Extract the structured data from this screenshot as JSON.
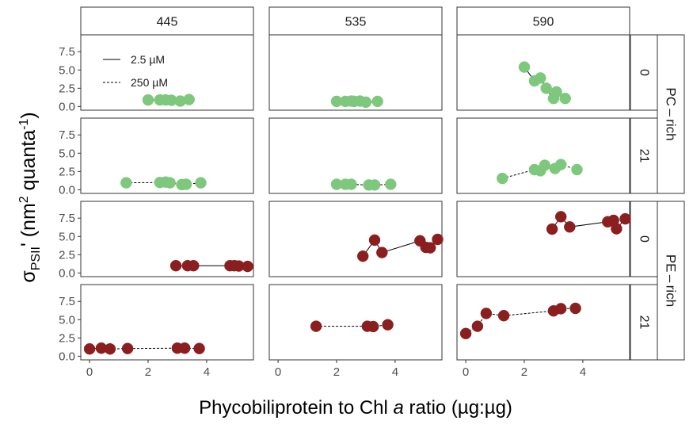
{
  "chart_data": {
    "type": "scatter",
    "xlabel_pre": "Phycobiliprotein to Chl ",
    "xlabel_italic": "a",
    "xlabel_post": " ratio (µg:µg)",
    "ylabel": "σPSII' (nm2 quanta-1)",
    "ylabel_parts": {
      "sigma": "σ",
      "sub": "PSII",
      "prime": "'",
      "open": " (nm",
      "sup2": "2",
      "mid": " quanta",
      "supm1": "-1",
      "close": ")"
    },
    "col_strips": [
      "445",
      "535",
      "590"
    ],
    "row_strips": [
      "0",
      "21",
      "0",
      "21"
    ],
    "group_strips": [
      "PC – rich",
      "PE – rich"
    ],
    "x_ticks": [
      0,
      2,
      4
    ],
    "y_ticks": [
      "0.0",
      "2.5",
      "5.0",
      "7.5"
    ],
    "xlim": [
      -0.3,
      5.6
    ],
    "ylim": [
      -0.5,
      9.8
    ],
    "legend": {
      "position": "top-left of first panel",
      "items": [
        {
          "label": "2.5 µM",
          "linetype": "solid"
        },
        {
          "label": "250 µM",
          "linetype": "dashed"
        }
      ]
    },
    "colors": {
      "pc_rich": "#7dc87d",
      "pe_rich": "#8b1f1f"
    },
    "panels": [
      {
        "row": 0,
        "col": 0,
        "group": "PC-rich",
        "linetype": "solid",
        "points": [
          [
            2.0,
            0.9
          ],
          [
            2.4,
            0.9
          ],
          [
            2.6,
            0.9
          ],
          [
            2.8,
            0.85
          ],
          [
            3.1,
            0.75
          ],
          [
            3.4,
            0.95
          ]
        ]
      },
      {
        "row": 0,
        "col": 1,
        "group": "PC-rich",
        "linetype": "solid",
        "points": [
          [
            2.0,
            0.7
          ],
          [
            2.3,
            0.7
          ],
          [
            2.5,
            0.75
          ],
          [
            2.6,
            0.7
          ],
          [
            2.8,
            0.75
          ],
          [
            3.0,
            0.6
          ],
          [
            3.4,
            0.7
          ]
        ]
      },
      {
        "row": 0,
        "col": 2,
        "group": "PC-rich",
        "linetype": "solid",
        "points": [
          [
            2.0,
            5.4
          ],
          [
            2.35,
            3.5
          ],
          [
            2.55,
            3.9
          ],
          [
            2.75,
            2.5
          ],
          [
            3.0,
            1.1
          ],
          [
            3.1,
            2.0
          ],
          [
            3.4,
            1.1
          ]
        ]
      },
      {
        "row": 1,
        "col": 0,
        "group": "PC-rich",
        "linetype": "dashed",
        "points": [
          [
            1.25,
            0.95
          ],
          [
            2.4,
            1.0
          ],
          [
            2.6,
            1.05
          ],
          [
            2.75,
            0.95
          ],
          [
            3.15,
            0.7
          ],
          [
            3.3,
            0.75
          ],
          [
            3.8,
            0.95
          ]
        ]
      },
      {
        "row": 1,
        "col": 1,
        "group": "PC-rich",
        "linetype": "dashed",
        "points": [
          [
            2.0,
            0.75
          ],
          [
            2.3,
            0.75
          ],
          [
            2.5,
            0.75
          ],
          [
            3.1,
            0.65
          ],
          [
            3.3,
            0.65
          ],
          [
            3.85,
            0.75
          ]
        ]
      },
      {
        "row": 1,
        "col": 2,
        "group": "PC-rich",
        "linetype": "dashed",
        "points": [
          [
            1.25,
            1.55
          ],
          [
            2.35,
            2.75
          ],
          [
            2.55,
            2.6
          ],
          [
            2.7,
            3.35
          ],
          [
            3.05,
            2.9
          ],
          [
            3.25,
            3.45
          ],
          [
            3.8,
            2.75
          ]
        ]
      },
      {
        "row": 2,
        "col": 0,
        "group": "PE-rich",
        "linetype": "solid",
        "points": [
          [
            2.95,
            1.0
          ],
          [
            3.35,
            1.0
          ],
          [
            3.55,
            1.0
          ],
          [
            4.8,
            1.0
          ],
          [
            4.95,
            1.0
          ],
          [
            5.1,
            0.95
          ],
          [
            5.4,
            0.9
          ]
        ]
      },
      {
        "row": 2,
        "col": 1,
        "group": "PE-rich",
        "linetype": "solid",
        "points": [
          [
            2.9,
            2.3
          ],
          [
            3.3,
            4.5
          ],
          [
            3.55,
            2.8
          ],
          [
            4.85,
            4.4
          ],
          [
            5.05,
            3.5
          ],
          [
            5.2,
            3.45
          ],
          [
            5.45,
            4.6
          ]
        ]
      },
      {
        "row": 2,
        "col": 2,
        "group": "PE-rich",
        "linetype": "solid",
        "points": [
          [
            2.95,
            6.0
          ],
          [
            3.25,
            7.7
          ],
          [
            3.55,
            6.3
          ],
          [
            4.85,
            7.0
          ],
          [
            5.05,
            7.2
          ],
          [
            5.15,
            6.05
          ],
          [
            5.45,
            7.4
          ]
        ]
      },
      {
        "row": 3,
        "col": 0,
        "group": "PE-rich",
        "linetype": "dashed",
        "points": [
          [
            0.0,
            1.0
          ],
          [
            0.4,
            1.1
          ],
          [
            0.7,
            1.0
          ],
          [
            1.3,
            1.05
          ],
          [
            3.0,
            1.1
          ],
          [
            3.25,
            1.1
          ],
          [
            3.75,
            1.05
          ]
        ]
      },
      {
        "row": 3,
        "col": 1,
        "group": "PE-rich",
        "linetype": "dashed",
        "points": [
          [
            1.3,
            4.1
          ],
          [
            3.05,
            4.1
          ],
          [
            3.25,
            4.05
          ],
          [
            3.75,
            4.3
          ]
        ]
      },
      {
        "row": 3,
        "col": 2,
        "group": "PE-rich",
        "linetype": "dashed",
        "points": [
          [
            0.0,
            3.1
          ],
          [
            0.4,
            4.1
          ],
          [
            0.7,
            5.85
          ],
          [
            1.3,
            5.55
          ],
          [
            3.0,
            6.2
          ],
          [
            3.25,
            6.5
          ],
          [
            3.75,
            6.55
          ]
        ]
      }
    ]
  }
}
